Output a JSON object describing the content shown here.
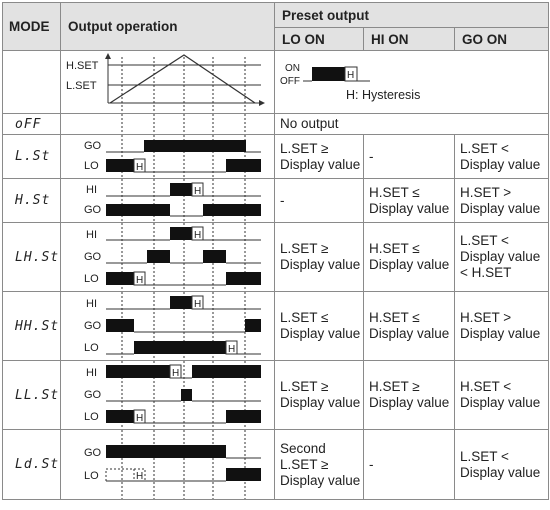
{
  "header": {
    "mode": "MODE",
    "output_operation": "Output operation",
    "preset_output": "Preset output",
    "lo_on": "LO ON",
    "hi_on": "HI ON",
    "go_on": "GO ON"
  },
  "legend": {
    "h_set": "H.SET",
    "l_set": "L.SET",
    "on": "ON",
    "off": "OFF",
    "h": "H",
    "hysteresis": "H: Hysteresis"
  },
  "signals": {
    "go": "GO",
    "lo": "LO",
    "hi": "HI",
    "h": "H"
  },
  "rows": [
    {
      "mode": "oFF",
      "lo_on": "No output",
      "hi_on": "",
      "go_on": ""
    },
    {
      "mode": "L.St",
      "lo_on": "L.SET ≥ Display value",
      "hi_on": "-",
      "go_on": "L.SET < Display value"
    },
    {
      "mode": "H.St",
      "lo_on": "-",
      "hi_on": "H.SET ≤ Display value",
      "go_on": "H.SET > Display value"
    },
    {
      "mode": "LH.St",
      "lo_on": "L.SET ≥ Display value",
      "hi_on": "H.SET ≤ Display value",
      "go_on": "L.SET < Display value < H.SET"
    },
    {
      "mode": "HH.St",
      "lo_on": "L.SET ≤ Display value",
      "hi_on": "H.SET ≤ Display value",
      "go_on": "H.SET > Display value"
    },
    {
      "mode": "LL.St",
      "lo_on": "L.SET ≥ Display value",
      "hi_on": "H.SET ≥ Display value",
      "go_on": "H.SET < Display value"
    },
    {
      "mode": "Ld.St",
      "lo_on": "Second L.SET ≥ Display value",
      "hi_on": "-",
      "go_on": "L.SET < Display value"
    }
  ]
}
